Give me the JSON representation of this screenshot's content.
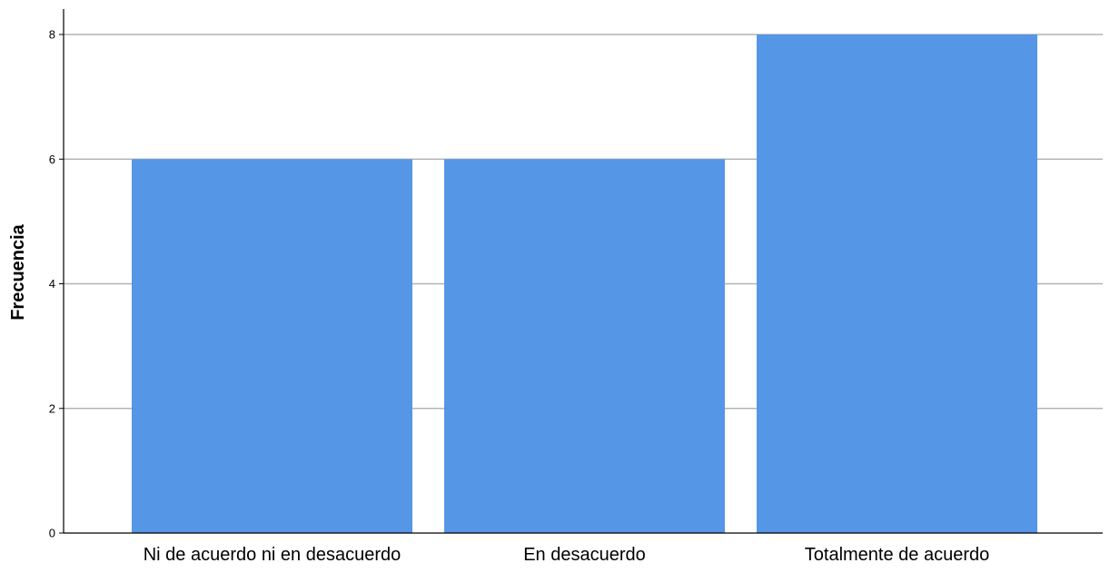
{
  "chart_data": {
    "type": "bar",
    "title": "",
    "xlabel": "",
    "ylabel": "Frecuencia",
    "categories": [
      "Ni de acuerdo ni en desacuerdo",
      "En desacuerdo",
      "Totalmente de acuerdo"
    ],
    "values": [
      6,
      6,
      8
    ],
    "ylim": [
      0,
      8
    ],
    "yticks": [
      0,
      2,
      4,
      6,
      8
    ],
    "grid": true,
    "legend": "none",
    "colors": {
      "bar": "#5596e6",
      "grid": "#b4b4b4",
      "axis": "#000000",
      "background": "#ffffff"
    }
  }
}
